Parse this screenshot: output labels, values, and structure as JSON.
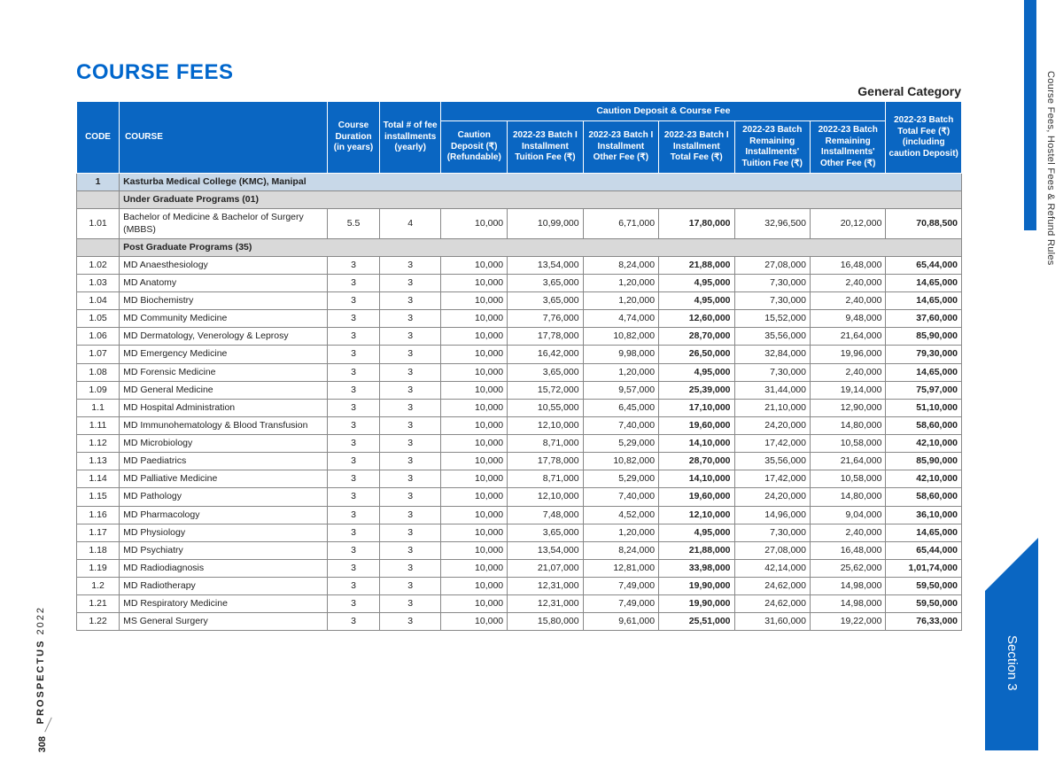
{
  "page": {
    "title": "COURSE FEES",
    "category": "General Category",
    "side_right_label": "Course Fees, Hostel Fees & Refund Rules",
    "section_tab": "Section 3",
    "prospectus_label": "PROSPECTUS",
    "prospectus_year": "2022",
    "page_number": "308"
  },
  "table": {
    "header_group": "Caution Deposit & Course Fee",
    "columns": {
      "code": "CODE",
      "course": "COURSE",
      "duration": "Course Duration (in years)",
      "installments": "Total # of fee installments (yearly)",
      "caution": "Caution Deposit (₹) (Refundable)",
      "i_tuition": "2022-23 Batch I Installment Tuition Fee (₹)",
      "i_other": "2022-23 Batch I Installment Other Fee (₹)",
      "i_total": "2022-23 Batch I Installment Total Fee (₹)",
      "rem_tuition": "2022-23 Batch Remaining Installments' Tuition Fee (₹)",
      "rem_other": "2022-23 Batch Remaining Installments' Other Fee (₹)",
      "grand_total": "2022-23 Batch Total Fee (₹) (including caution Deposit)"
    },
    "section": {
      "code": "1",
      "name": "Kasturba Medical College (KMC), Manipal"
    },
    "ug_label": "Under Graduate Programs (01)",
    "pg_label": "Post Graduate Programs (35)",
    "ug_rows": [
      {
        "code": "1.01",
        "name": "Bachelor of Medicine & Bachelor of Surgery (MBBS)",
        "dur": "5.5",
        "inst": "4",
        "caution": "10,000",
        "ituition": "10,99,000",
        "iother": "6,71,000",
        "itotal": "17,80,000",
        "rtuition": "32,96,500",
        "rother": "20,12,000",
        "grand": "70,88,500"
      }
    ],
    "pg_rows": [
      {
        "code": "1.02",
        "name": "MD Anaesthesiology",
        "dur": "3",
        "inst": "3",
        "caution": "10,000",
        "ituition": "13,54,000",
        "iother": "8,24,000",
        "itotal": "21,88,000",
        "rtuition": "27,08,000",
        "rother": "16,48,000",
        "grand": "65,44,000"
      },
      {
        "code": "1.03",
        "name": "MD Anatomy",
        "dur": "3",
        "inst": "3",
        "caution": "10,000",
        "ituition": "3,65,000",
        "iother": "1,20,000",
        "itotal": "4,95,000",
        "rtuition": "7,30,000",
        "rother": "2,40,000",
        "grand": "14,65,000"
      },
      {
        "code": "1.04",
        "name": "MD Biochemistry",
        "dur": "3",
        "inst": "3",
        "caution": "10,000",
        "ituition": "3,65,000",
        "iother": "1,20,000",
        "itotal": "4,95,000",
        "rtuition": "7,30,000",
        "rother": "2,40,000",
        "grand": "14,65,000"
      },
      {
        "code": "1.05",
        "name": "MD Community Medicine",
        "dur": "3",
        "inst": "3",
        "caution": "10,000",
        "ituition": "7,76,000",
        "iother": "4,74,000",
        "itotal": "12,60,000",
        "rtuition": "15,52,000",
        "rother": "9,48,000",
        "grand": "37,60,000"
      },
      {
        "code": "1.06",
        "name": "MD Dermatology, Venerology & Leprosy",
        "dur": "3",
        "inst": "3",
        "caution": "10,000",
        "ituition": "17,78,000",
        "iother": "10,82,000",
        "itotal": "28,70,000",
        "rtuition": "35,56,000",
        "rother": "21,64,000",
        "grand": "85,90,000"
      },
      {
        "code": "1.07",
        "name": "MD Emergency Medicine",
        "dur": "3",
        "inst": "3",
        "caution": "10,000",
        "ituition": "16,42,000",
        "iother": "9,98,000",
        "itotal": "26,50,000",
        "rtuition": "32,84,000",
        "rother": "19,96,000",
        "grand": "79,30,000"
      },
      {
        "code": "1.08",
        "name": "MD Forensic Medicine",
        "dur": "3",
        "inst": "3",
        "caution": "10,000",
        "ituition": "3,65,000",
        "iother": "1,20,000",
        "itotal": "4,95,000",
        "rtuition": "7,30,000",
        "rother": "2,40,000",
        "grand": "14,65,000"
      },
      {
        "code": "1.09",
        "name": "MD General Medicine",
        "dur": "3",
        "inst": "3",
        "caution": "10,000",
        "ituition": "15,72,000",
        "iother": "9,57,000",
        "itotal": "25,39,000",
        "rtuition": "31,44,000",
        "rother": "19,14,000",
        "grand": "75,97,000"
      },
      {
        "code": "1.1",
        "name": "MD Hospital Administration",
        "dur": "3",
        "inst": "3",
        "caution": "10,000",
        "ituition": "10,55,000",
        "iother": "6,45,000",
        "itotal": "17,10,000",
        "rtuition": "21,10,000",
        "rother": "12,90,000",
        "grand": "51,10,000"
      },
      {
        "code": "1.11",
        "name": "MD Immunohematology & Blood Transfusion",
        "dur": "3",
        "inst": "3",
        "caution": "10,000",
        "ituition": "12,10,000",
        "iother": "7,40,000",
        "itotal": "19,60,000",
        "rtuition": "24,20,000",
        "rother": "14,80,000",
        "grand": "58,60,000"
      },
      {
        "code": "1.12",
        "name": "MD Microbiology",
        "dur": "3",
        "inst": "3",
        "caution": "10,000",
        "ituition": "8,71,000",
        "iother": "5,29,000",
        "itotal": "14,10,000",
        "rtuition": "17,42,000",
        "rother": "10,58,000",
        "grand": "42,10,000"
      },
      {
        "code": "1.13",
        "name": "MD Paediatrics",
        "dur": "3",
        "inst": "3",
        "caution": "10,000",
        "ituition": "17,78,000",
        "iother": "10,82,000",
        "itotal": "28,70,000",
        "rtuition": "35,56,000",
        "rother": "21,64,000",
        "grand": "85,90,000"
      },
      {
        "code": "1.14",
        "name": "MD Palliative Medicine",
        "dur": "3",
        "inst": "3",
        "caution": "10,000",
        "ituition": "8,71,000",
        "iother": "5,29,000",
        "itotal": "14,10,000",
        "rtuition": "17,42,000",
        "rother": "10,58,000",
        "grand": "42,10,000"
      },
      {
        "code": "1.15",
        "name": "MD Pathology",
        "dur": "3",
        "inst": "3",
        "caution": "10,000",
        "ituition": "12,10,000",
        "iother": "7,40,000",
        "itotal": "19,60,000",
        "rtuition": "24,20,000",
        "rother": "14,80,000",
        "grand": "58,60,000"
      },
      {
        "code": "1.16",
        "name": "MD Pharmacology",
        "dur": "3",
        "inst": "3",
        "caution": "10,000",
        "ituition": "7,48,000",
        "iother": "4,52,000",
        "itotal": "12,10,000",
        "rtuition": "14,96,000",
        "rother": "9,04,000",
        "grand": "36,10,000"
      },
      {
        "code": "1.17",
        "name": "MD Physiology",
        "dur": "3",
        "inst": "3",
        "caution": "10,000",
        "ituition": "3,65,000",
        "iother": "1,20,000",
        "itotal": "4,95,000",
        "rtuition": "7,30,000",
        "rother": "2,40,000",
        "grand": "14,65,000"
      },
      {
        "code": "1.18",
        "name": "MD Psychiatry",
        "dur": "3",
        "inst": "3",
        "caution": "10,000",
        "ituition": "13,54,000",
        "iother": "8,24,000",
        "itotal": "21,88,000",
        "rtuition": "27,08,000",
        "rother": "16,48,000",
        "grand": "65,44,000"
      },
      {
        "code": "1.19",
        "name": "MD Radiodiagnosis",
        "dur": "3",
        "inst": "3",
        "caution": "10,000",
        "ituition": "21,07,000",
        "iother": "12,81,000",
        "itotal": "33,98,000",
        "rtuition": "42,14,000",
        "rother": "25,62,000",
        "grand": "1,01,74,000"
      },
      {
        "code": "1.2",
        "name": "MD Radiotherapy",
        "dur": "3",
        "inst": "3",
        "caution": "10,000",
        "ituition": "12,31,000",
        "iother": "7,49,000",
        "itotal": "19,90,000",
        "rtuition": "24,62,000",
        "rother": "14,98,000",
        "grand": "59,50,000"
      },
      {
        "code": "1.21",
        "name": "MD Respiratory Medicine",
        "dur": "3",
        "inst": "3",
        "caution": "10,000",
        "ituition": "12,31,000",
        "iother": "7,49,000",
        "itotal": "19,90,000",
        "rtuition": "24,62,000",
        "rother": "14,98,000",
        "grand": "59,50,000"
      },
      {
        "code": "1.22",
        "name": "MS General Surgery",
        "dur": "3",
        "inst": "3",
        "caution": "10,000",
        "ituition": "15,80,000",
        "iother": "9,61,000",
        "itotal": "25,51,000",
        "rtuition": "31,60,000",
        "rother": "19,22,000",
        "grand": "76,33,000"
      }
    ]
  }
}
